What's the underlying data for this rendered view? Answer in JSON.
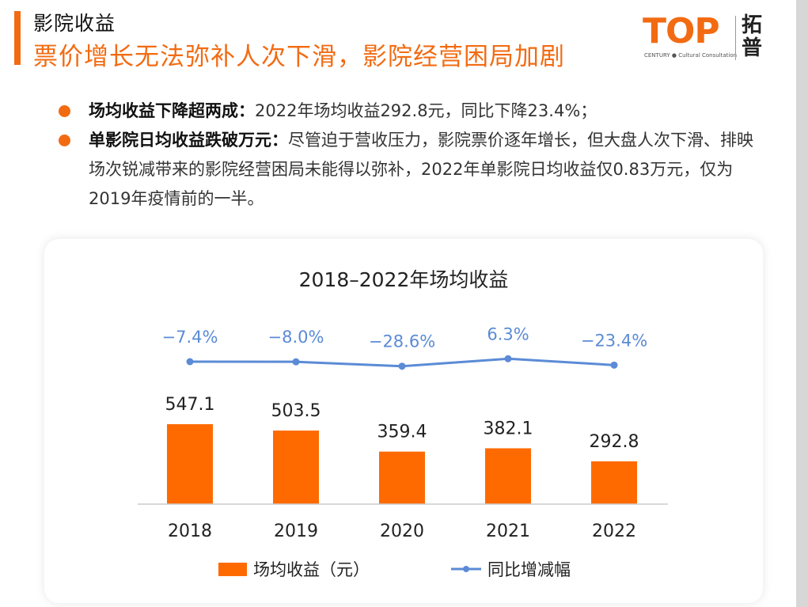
{
  "header": {
    "section": "影院收益",
    "headline": "票价增长无法弥补人次下滑，影院经营困局加剧"
  },
  "logo": {
    "wordmark": "TOP",
    "subtitle": "CENTURY ● Cultural Consultation",
    "chinese": "拓普"
  },
  "bullets": [
    {
      "lead": "场均收益下降超两成：",
      "text": "2022年场均收益292.8元，同比下降23.4%；"
    },
    {
      "lead": "单影院日均收益跌破万元：",
      "text": "尽管迫于营收压力，影院票价逐年增长，但大盘人次下滑、排映场次锐减带来的影院经营困局未能得以弥补，2022年单影院日均收益仅0.83万元，仅为2019年疫情前的一半。"
    }
  ],
  "colors": {
    "accent": "#f26b12",
    "bar": "#ff6a00",
    "line": "#5b8bd6"
  },
  "chart_data": {
    "type": "bar",
    "title": "2018–2022年场均收益",
    "categories": [
      "2018",
      "2019",
      "2020",
      "2021",
      "2022"
    ],
    "series": [
      {
        "name": "场均收益（元）",
        "type": "bar",
        "values": [
          547.1,
          503.5,
          359.4,
          382.1,
          292.8
        ]
      },
      {
        "name": "同比增减幅",
        "type": "line",
        "values": [
          -7.4,
          -8.0,
          -28.6,
          6.3,
          -23.4
        ],
        "labels": [
          "−7.4%",
          "−8.0%",
          "−28.6%",
          "6.3%",
          "−23.4%"
        ]
      }
    ],
    "legend": "bottom",
    "grid": false
  }
}
